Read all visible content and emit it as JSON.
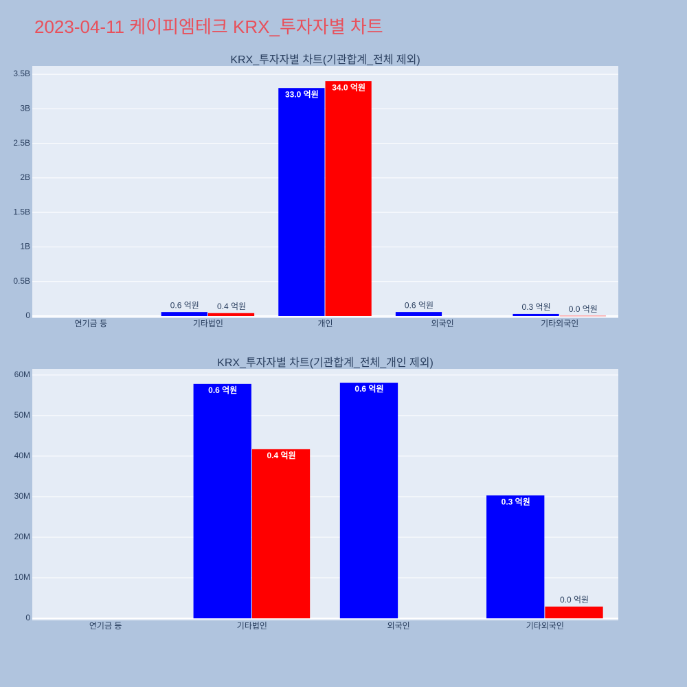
{
  "title": "2023-04-11 케이피엠테크 KRX_투자자별 차트",
  "chart_data": [
    {
      "type": "bar",
      "title": "KRX_투자자별 차트(기관합계_전체 제외)",
      "categories": [
        "연기금 등",
        "기타법인",
        "개인",
        "외국인",
        "기타외국인"
      ],
      "series": [
        {
          "color": "#0000ff",
          "values": [
            null,
            57800000,
            3300000000,
            58100000,
            30300000
          ],
          "value_labels": [
            null,
            "0.6 억원",
            "33.0 억원",
            "0.6 억원",
            "0.3 억원"
          ]
        },
        {
          "color": "#ff0000",
          "values": [
            null,
            41700000,
            3400000000,
            null,
            2900000
          ],
          "value_labels": [
            null,
            "0.4 억원",
            "34.0 억원",
            null,
            "0.0 억원"
          ]
        }
      ],
      "ylim": [
        -30000000,
        3620000000
      ],
      "yticks": [
        0,
        {
          "value": 500000000,
          "label": "0.5B"
        },
        {
          "value": 1000000000,
          "label": "1B"
        },
        {
          "value": 1500000000,
          "label": "1.5B"
        },
        {
          "value": 2000000000,
          "label": "2B"
        },
        {
          "value": 2500000000,
          "label": "2.5B"
        },
        {
          "value": 3000000000,
          "label": "3B"
        },
        {
          "value": 3500000000,
          "label": "3.5B"
        }
      ],
      "grid": true
    },
    {
      "type": "bar",
      "title": "KRX_투자자별 차트(기관합계_전체_개인 제외)",
      "categories": [
        "연기금 등",
        "기타법인",
        "외국인",
        "기타외국인"
      ],
      "series": [
        {
          "color": "#0000ff",
          "values": [
            null,
            57800000,
            58100000,
            30300000
          ],
          "value_labels": [
            null,
            "0.6 억원",
            "0.6 억원",
            "0.3 억원"
          ]
        },
        {
          "color": "#ff0000",
          "values": [
            null,
            41700000,
            null,
            2900000
          ],
          "value_labels": [
            null,
            "0.4 억원",
            null,
            "0.0 억원"
          ]
        }
      ],
      "ylim": [
        -500000,
        61500000
      ],
      "yticks": [
        0,
        {
          "value": 10000000,
          "label": "10M"
        },
        {
          "value": 20000000,
          "label": "20M"
        },
        {
          "value": 30000000,
          "label": "30M"
        },
        {
          "value": 40000000,
          "label": "40M"
        },
        {
          "value": 50000000,
          "label": "50M"
        },
        {
          "value": 60000000,
          "label": "60M"
        }
      ],
      "grid": true
    }
  ]
}
